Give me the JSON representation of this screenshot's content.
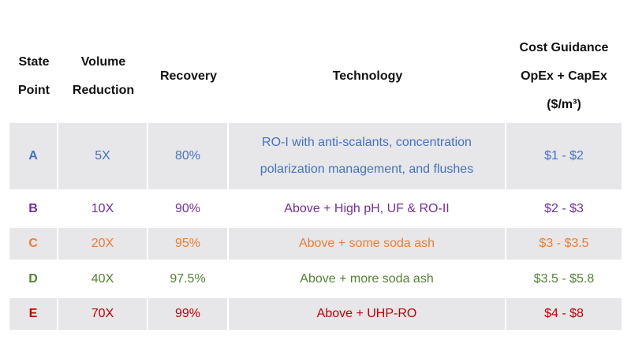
{
  "table": {
    "headers": {
      "state": [
        "State",
        "Point"
      ],
      "volume": [
        "Volume",
        "Reduction"
      ],
      "recovery": "Recovery",
      "technology": "Technology",
      "cost": [
        "Cost Guidance",
        "OpEx + CapEx",
        "($/m³)"
      ]
    },
    "rows": [
      {
        "state": "A",
        "volume": "5X",
        "recovery": "80%",
        "technology": [
          "RO-I with anti-scalants, concentration",
          "polarization management, and flushes"
        ],
        "cost": "$1 - $2",
        "color": "#4472c4"
      },
      {
        "state": "B",
        "volume": "10X",
        "recovery": "90%",
        "technology": "Above + High pH, UF & RO-II",
        "cost": "$2 - $3",
        "color": "#7030a0"
      },
      {
        "state": "C",
        "volume": "20X",
        "recovery": "95%",
        "technology": "Above + some soda ash",
        "cost": "$3 - $3.5",
        "color": "#ed7d31"
      },
      {
        "state": "D",
        "volume": "40X",
        "recovery": "97.5%",
        "technology": "Above + more soda ash",
        "cost": "$3.5 - $5.8",
        "color": "#548235"
      },
      {
        "state": "E",
        "volume": "70X",
        "recovery": "99%",
        "technology": "Above + UHP-RO",
        "cost": "$4 - $8",
        "color": "#c00000"
      }
    ],
    "row_backgrounds": [
      "#e7e6e9",
      "#ffffff",
      "#e7e6e9",
      "#ffffff",
      "#e7e6e9"
    ]
  }
}
